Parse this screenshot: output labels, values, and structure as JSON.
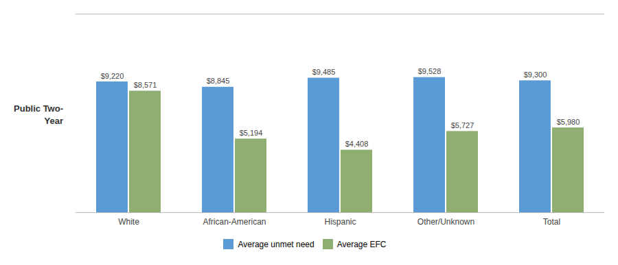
{
  "chart_data": {
    "type": "bar",
    "ylabel": "Public Two-\nYear",
    "categories": [
      "White",
      "African-American",
      "Hispanic",
      "Other/Unknown",
      "Total"
    ],
    "series": [
      {
        "name": "Average unmet need",
        "color": "#5B9BD5",
        "values": [
          9220,
          8845,
          9485,
          9528,
          9300
        ],
        "value_labels": [
          "$9,220",
          "$8,845",
          "$9,485",
          "$9,528",
          "$9,300"
        ]
      },
      {
        "name": "Average EFC",
        "color": "#8FAF72",
        "values": [
          8571,
          5194,
          4408,
          5727,
          5980
        ],
        "value_labels": [
          "$8,571",
          "$5,194",
          "$4,408",
          "$5,727",
          "$5,980"
        ]
      }
    ],
    "ylim": [
      0,
      14000
    ],
    "data_labels": true,
    "tick_labels": "x",
    "grid": false,
    "legend": "bottom"
  }
}
